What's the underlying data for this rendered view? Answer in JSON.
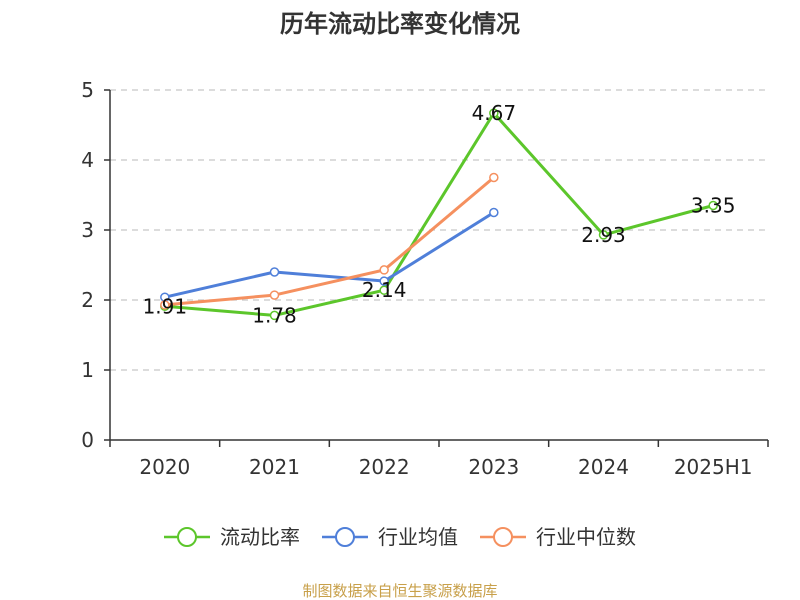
{
  "chart_data": {
    "type": "line",
    "title": "历年流动比率变化情况",
    "categories": [
      "2020",
      "2021",
      "2022",
      "2023",
      "2024",
      "2025H1"
    ],
    "ylim": [
      0,
      5
    ],
    "yticks": [
      "0",
      "1",
      "2",
      "3",
      "4",
      "5"
    ],
    "grid": true,
    "legend_position": "bottom",
    "series": [
      {
        "name": "流动比率",
        "color": "#5cc62b",
        "values": [
          1.91,
          1.78,
          2.14,
          4.67,
          2.93,
          3.35
        ],
        "labels": [
          "1.91",
          "1.78",
          "2.14",
          "4.67",
          "2.93",
          "3.35"
        ]
      },
      {
        "name": "行业均值",
        "color": "#4f7fd9",
        "values": [
          2.04,
          2.4,
          2.27,
          3.25,
          null,
          null
        ]
      },
      {
        "name": "行业中位数",
        "color": "#f5905f",
        "values": [
          1.93,
          2.07,
          2.43,
          3.75,
          null,
          null
        ]
      }
    ]
  },
  "source": {
    "text": "制图数据来自恒生聚源数据库",
    "color": "#c8a04a"
  }
}
